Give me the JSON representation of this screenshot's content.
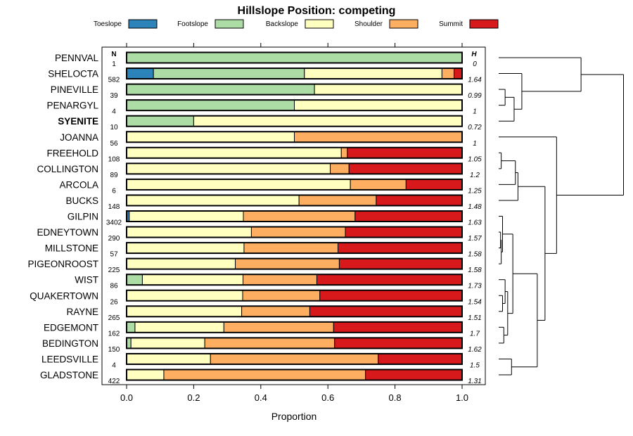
{
  "chart_data": {
    "type": "bar",
    "orientation": "horizontal",
    "stacked": true,
    "title": "Hillslope Position: competing",
    "xlabel": "Proportion",
    "xlim": [
      0,
      1
    ],
    "xticks": [
      "0.0",
      "0.2",
      "0.4",
      "0.6",
      "0.8",
      "1.0"
    ],
    "n_header": "N",
    "h_header": "H",
    "legend": [
      {
        "name": "Toeslope",
        "color": "#2b83ba"
      },
      {
        "name": "Footslope",
        "color": "#abdda4"
      },
      {
        "name": "Backslope",
        "color": "#ffffbf"
      },
      {
        "name": "Shoulder",
        "color": "#fdae61"
      },
      {
        "name": "Summit",
        "color": "#d7191c"
      }
    ],
    "categories": [
      "PENNVAL",
      "SHELOCTA",
      "PINEVILLE",
      "PENARGYL",
      "SYENITE",
      "JOANNA",
      "FREEHOLD",
      "COLLINGTON",
      "ARCOLA",
      "BUCKS",
      "GILPIN",
      "EDNEYTOWN",
      "MILLSTONE",
      "PIGEONROOST",
      "WIST",
      "QUAKERTOWN",
      "RAYNE",
      "EDGEMONT",
      "BEDINGTON",
      "LEEDSVILLE",
      "GLADSTONE"
    ],
    "highlight": "SYENITE",
    "n": [
      "1",
      "582",
      "39",
      "4",
      "10",
      "56",
      "108",
      "89",
      "6",
      "148",
      "3402",
      "290",
      "57",
      "225",
      "86",
      "26",
      "265",
      "162",
      "150",
      "4",
      "422"
    ],
    "h": [
      "0",
      "1.64",
      "0.99",
      "1",
      "0.72",
      "1",
      "1.05",
      "1.2",
      "1.25",
      "1.48",
      "1.63",
      "1.57",
      "1.58",
      "1.58",
      "1.73",
      "1.54",
      "1.51",
      "1.7",
      "1.62",
      "1.5",
      "1.31"
    ],
    "series": [
      {
        "name": "Toeslope",
        "values": [
          0,
          0.08,
          0,
          0,
          0,
          0,
          0,
          0,
          0,
          0,
          0.008,
          0,
          0,
          0,
          0,
          0,
          0,
          0,
          0,
          0,
          0
        ]
      },
      {
        "name": "Footslope",
        "values": [
          1.0,
          0.45,
          0.56,
          0.5,
          0.2,
          0,
          0,
          0,
          0,
          0,
          0,
          0,
          0,
          0,
          0.047,
          0,
          0,
          0.025,
          0.013,
          0,
          0
        ]
      },
      {
        "name": "Backslope",
        "values": [
          0,
          0.41,
          0.44,
          0.5,
          0.8,
          0.5,
          0.64,
          0.607,
          0.667,
          0.514,
          0.34,
          0.372,
          0.35,
          0.324,
          0.3,
          0.346,
          0.343,
          0.265,
          0.22,
          0.25,
          0.111
        ]
      },
      {
        "name": "Shoulder",
        "values": [
          0,
          0.036,
          0,
          0,
          0,
          0.5,
          0.018,
          0.056,
          0.166,
          0.23,
          0.333,
          0.28,
          0.28,
          0.31,
          0.22,
          0.23,
          0.203,
          0.327,
          0.387,
          0.5,
          0.601
        ]
      },
      {
        "name": "Summit",
        "values": [
          0,
          0.024,
          0,
          0,
          0,
          0,
          0.342,
          0.337,
          0.167,
          0.256,
          0.319,
          0.348,
          0.37,
          0.366,
          0.433,
          0.424,
          0.454,
          0.383,
          0.38,
          0.25,
          0.288
        ]
      }
    ],
    "dendrogram": [
      {
        "a": 2,
        "b": 3,
        "height": 0.05
      },
      {
        "a": 21,
        "b": 4,
        "height": 0.12
      },
      {
        "a": 1,
        "b": 22,
        "height": 0.18
      },
      {
        "a": 0,
        "b": 23,
        "height": 0.64
      },
      {
        "a": 6,
        "b": 7,
        "height": 0.02
      },
      {
        "a": 25,
        "b": 8,
        "height": 0.13
      },
      {
        "a": 26,
        "b": 9,
        "height": 0.15
      },
      {
        "a": 11,
        "b": 12,
        "height": 0.015
      },
      {
        "a": 28,
        "b": 13,
        "height": 0.02
      },
      {
        "a": 10,
        "b": 29,
        "height": 0.03
      },
      {
        "a": 15,
        "b": 16,
        "height": 0.03
      },
      {
        "a": 14,
        "b": 31,
        "height": 0.05
      },
      {
        "a": 17,
        "b": 18,
        "height": 0.04
      },
      {
        "a": 32,
        "b": 33,
        "height": 0.07
      },
      {
        "a": 30,
        "b": 34,
        "height": 0.11
      },
      {
        "a": 19,
        "b": 20,
        "height": 0.1
      },
      {
        "a": 35,
        "b": 36,
        "height": 0.3
      },
      {
        "a": 27,
        "b": 37,
        "height": 0.36
      },
      {
        "a": 5,
        "b": 38,
        "height": 0.45
      },
      {
        "a": 24,
        "b": 39,
        "height": 0.97
      }
    ]
  }
}
